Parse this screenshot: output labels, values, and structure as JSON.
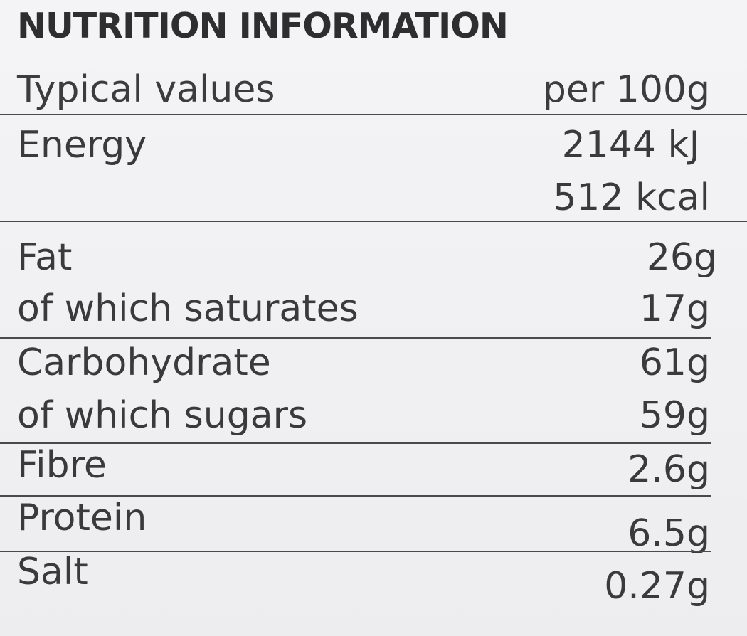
{
  "title": "NUTRITION INFORMATION",
  "header": {
    "label": "Typical values",
    "unit": "per 100g"
  },
  "rows": [
    {
      "name": "Energy",
      "value": "2144 kJ"
    },
    {
      "name": "",
      "value": "512 kcal"
    },
    {
      "name": "Fat",
      "value": "26g"
    },
    {
      "name": "of which saturates",
      "value": "17g"
    },
    {
      "name": "Carbohydrate",
      "value": "61g"
    },
    {
      "name": "of which sugars",
      "value": "59g"
    },
    {
      "name": "Fibre",
      "value": "2.6g"
    },
    {
      "name": "Protein",
      "value": "6.5g"
    },
    {
      "name": "Salt",
      "value": "0.27g"
    }
  ]
}
